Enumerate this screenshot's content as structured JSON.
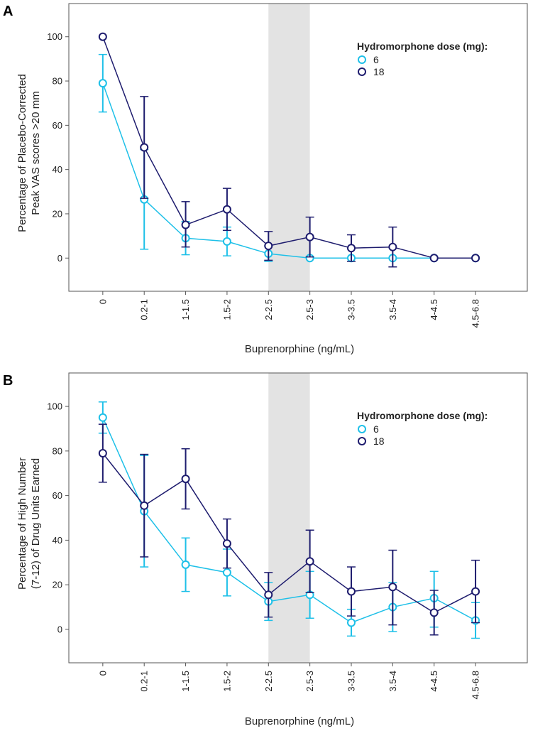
{
  "chart_data": [
    {
      "panel_label": "A",
      "type": "line",
      "categories": [
        "0",
        "0.2-1",
        "1-1.5",
        "1.5-2",
        "2-2.5",
        "2.5-3",
        "3-3.5",
        "3.5-4",
        "4-4.5",
        "4.5-6.8"
      ],
      "ylabel_lines": [
        "Percentage of Placebo-Corrected",
        "Peak VAS scores >20 mm"
      ],
      "xlabel": "Buprenorphine (ng/mL)",
      "ylim": [
        -15,
        115
      ],
      "yticks": [
        0,
        20,
        40,
        60,
        80,
        100
      ],
      "shaded_category_range": [
        "2-2.5",
        "2.5-3"
      ],
      "legend_title": "Hydromorphone dose (mg):",
      "series": [
        {
          "name": "6",
          "color": "#1ec0e8",
          "values": [
            79,
            26.5,
            9,
            7.5,
            2,
            0,
            0,
            0,
            0,
            0
          ],
          "err_low": [
            66,
            4,
            1.5,
            1,
            -1.5,
            null,
            null,
            null,
            null,
            null
          ],
          "err_high": [
            92,
            49,
            16.5,
            14,
            5.5,
            null,
            null,
            null,
            null,
            null
          ]
        },
        {
          "name": "18",
          "color": "#1e1c6e",
          "values": [
            100,
            50,
            15,
            22,
            5.5,
            9.5,
            4.5,
            5,
            0,
            0
          ],
          "err_low": [
            null,
            27,
            5,
            12.5,
            -1,
            0.5,
            -1.5,
            -4,
            null,
            null
          ],
          "err_high": [
            null,
            73,
            25.5,
            31.5,
            12,
            18.5,
            10.5,
            14,
            null,
            null
          ]
        }
      ]
    },
    {
      "panel_label": "B",
      "type": "line",
      "categories": [
        "0",
        "0.2-1",
        "1-1.5",
        "1.5-2",
        "2-2.5",
        "2.5-3",
        "3-3.5",
        "3.5-4",
        "4-4.5",
        "4.5-6.8"
      ],
      "ylabel_lines": [
        "Percentage of High Number",
        "(7-12) of Drug Units Earned"
      ],
      "xlabel": "Buprenorphine (ng/mL)",
      "ylim": [
        -15,
        115
      ],
      "yticks": [
        0,
        20,
        40,
        60,
        80,
        100
      ],
      "shaded_category_range": [
        "2-2.5",
        "2.5-3"
      ],
      "legend_title": "Hydromorphone dose (mg):",
      "series": [
        {
          "name": "6",
          "color": "#1ec0e8",
          "values": [
            95,
            53,
            29,
            25.5,
            12.5,
            15.5,
            3,
            10,
            14,
            4
          ],
          "err_low": [
            88,
            28,
            17,
            15,
            4,
            5,
            -3,
            -1,
            1,
            -4
          ],
          "err_high": [
            102,
            78,
            41,
            36,
            21,
            26,
            9,
            21,
            26,
            12
          ]
        },
        {
          "name": "18",
          "color": "#1e1c6e",
          "values": [
            79,
            55.5,
            67.5,
            38.5,
            15.5,
            30.5,
            17,
            19,
            7.5,
            17
          ],
          "err_low": [
            66,
            32.5,
            54,
            27.5,
            5.5,
            16.5,
            6,
            2,
            -2.5,
            3
          ],
          "err_high": [
            92,
            78.5,
            81,
            49.5,
            25.5,
            44.5,
            28,
            35.5,
            17.5,
            31
          ]
        }
      ]
    }
  ]
}
